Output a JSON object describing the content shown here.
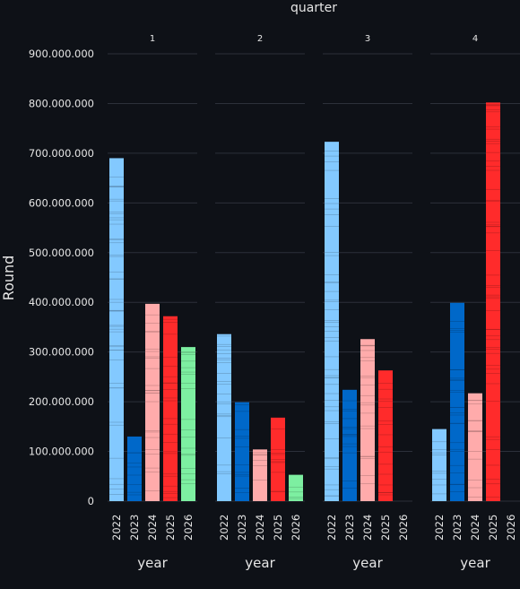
{
  "chart_data": {
    "type": "bar",
    "stacked": true,
    "facet_title": "quarter",
    "ylabel": "Round",
    "xlabel": "year",
    "ylim": [
      0,
      900000000
    ],
    "yticks": [
      0,
      100000000,
      200000000,
      300000000,
      400000000,
      500000000,
      600000000,
      700000000,
      800000000,
      900000000
    ],
    "ytick_labels": [
      "0",
      "100.000.000",
      "200.000.000",
      "300.000.000",
      "400.000.000",
      "500.000.000",
      "600.000.000",
      "700.000.000",
      "800.000.000",
      "900.000.000"
    ],
    "grid": true,
    "categories": [
      "2022",
      "2023",
      "2024",
      "2025",
      "2026"
    ],
    "colors": {
      "2022": "#83c9ff",
      "2023": "#0068c9",
      "2024": "#ffabab",
      "2025": "#ff2b2b",
      "2026": "#7defa1"
    },
    "panels": [
      {
        "title": "1",
        "values": [
          690000000,
          130000000,
          397000000,
          372000000,
          310000000
        ]
      },
      {
        "title": "2",
        "values": [
          336000000,
          199000000,
          104000000,
          168000000,
          53000000
        ]
      },
      {
        "title": "3",
        "values": [
          723000000,
          224000000,
          326000000,
          263000000,
          0
        ]
      },
      {
        "title": "4",
        "values": [
          145000000,
          399000000,
          217000000,
          802000000,
          0
        ]
      }
    ]
  }
}
